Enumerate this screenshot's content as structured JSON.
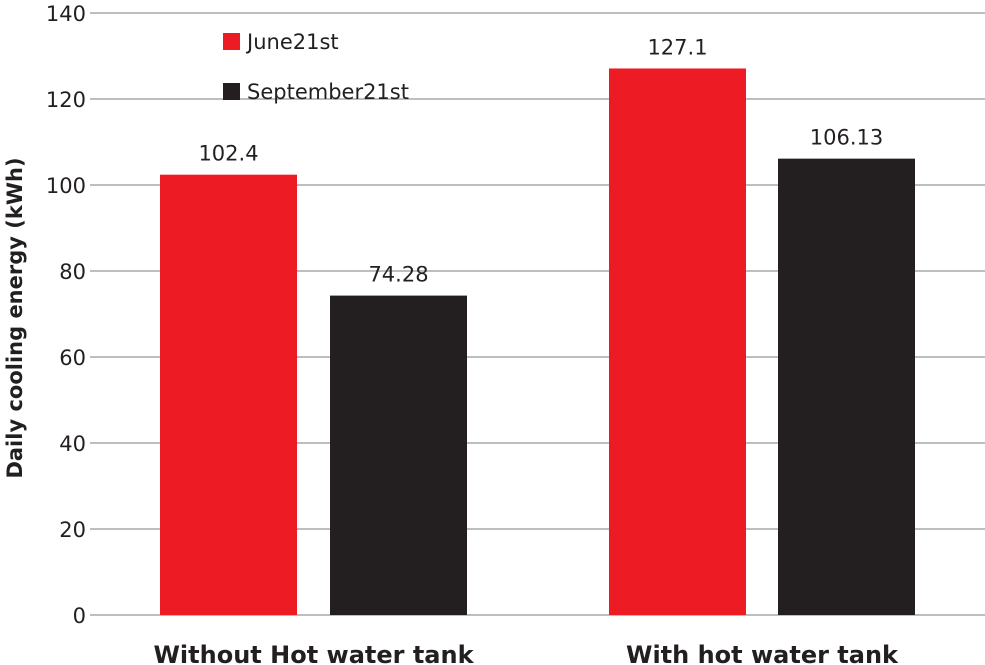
{
  "chart_data": {
    "type": "bar",
    "title": "",
    "xlabel": "",
    "ylabel": "Daily cooling energy  (kWh)",
    "ylim": [
      0,
      140
    ],
    "yticks": [
      0,
      20,
      40,
      60,
      80,
      100,
      120,
      140
    ],
    "grid": true,
    "legend_position": "top-left",
    "categories": [
      "Without Hot water tank",
      "With hot water tank"
    ],
    "series": [
      {
        "name": "June21st",
        "color": "#ed1c24",
        "values": [
          102.4,
          127.1
        ],
        "labels": [
          "102.4",
          "127.1"
        ]
      },
      {
        "name": "September21st",
        "color": "#231f20",
        "values": [
          74.28,
          106.13
        ],
        "labels": [
          "74.28",
          "106.13"
        ]
      }
    ]
  }
}
